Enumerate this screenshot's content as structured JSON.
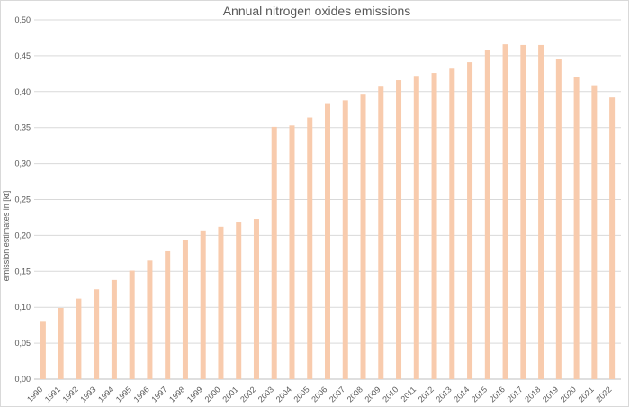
{
  "chart_data": {
    "type": "bar",
    "title": "Annual nitrogen oxides emissions",
    "xlabel": "",
    "ylabel": "emission estimates in [kt]",
    "ylim": [
      0,
      0.5
    ],
    "y_ticks": [
      "0,00",
      "0,05",
      "0,10",
      "0,15",
      "0,20",
      "0,25",
      "0,30",
      "0,35",
      "0,40",
      "0,45",
      "0,50"
    ],
    "grid": true,
    "legend": "none",
    "bar_color": "#f8cbad",
    "categories": [
      "1990",
      "1991",
      "1992",
      "1993",
      "1994",
      "1995",
      "1996",
      "1997",
      "1998",
      "1999",
      "2000",
      "2001",
      "2002",
      "2003",
      "2004",
      "2005",
      "2006",
      "2007",
      "2008",
      "2009",
      "2010",
      "2011",
      "2012",
      "2013",
      "2014",
      "2015",
      "2016",
      "2017",
      "2018",
      "2019",
      "2020",
      "2021",
      "2022"
    ],
    "values": [
      0.081,
      0.099,
      0.112,
      0.125,
      0.138,
      0.151,
      0.165,
      0.178,
      0.193,
      0.207,
      0.212,
      0.218,
      0.223,
      0.351,
      0.353,
      0.364,
      0.384,
      0.388,
      0.397,
      0.407,
      0.416,
      0.422,
      0.426,
      0.432,
      0.441,
      0.458,
      0.466,
      0.465,
      0.465,
      0.446,
      0.421,
      0.409,
      0.392
    ]
  }
}
